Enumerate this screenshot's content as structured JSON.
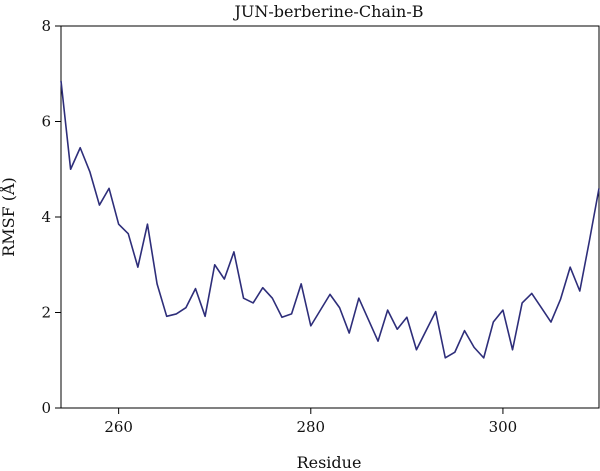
{
  "chart_data": {
    "type": "line",
    "title": "JUN-berberine-Chain-B",
    "xlabel": "Residue",
    "ylabel": "RMSF (Å)",
    "xlim": [
      254,
      310
    ],
    "ylim": [
      0,
      8
    ],
    "xticks": [
      260,
      280,
      300
    ],
    "yticks": [
      0,
      2,
      4,
      6,
      8
    ],
    "grid": false,
    "line_color": "#2e2e7a",
    "series": [
      {
        "x": [
          254,
          255,
          256,
          257,
          258,
          259,
          260,
          261,
          262,
          263,
          264,
          265,
          266,
          267,
          268,
          269,
          270,
          271,
          272,
          273,
          274,
          275,
          276,
          277,
          278,
          279,
          280,
          281,
          282,
          283,
          284,
          285,
          286,
          287,
          288,
          289,
          290,
          291,
          292,
          293,
          294,
          295,
          296,
          297,
          298,
          299,
          300,
          301,
          302,
          303,
          304,
          305,
          306,
          307,
          308,
          309,
          310
        ],
        "y": [
          6.85,
          5.0,
          5.45,
          4.95,
          4.25,
          4.6,
          3.85,
          3.65,
          2.95,
          3.85,
          2.6,
          1.92,
          1.97,
          2.1,
          2.5,
          1.92,
          3.0,
          2.7,
          3.27,
          2.3,
          2.2,
          2.52,
          2.3,
          1.9,
          1.97,
          2.6,
          1.72,
          2.05,
          2.38,
          2.1,
          1.57,
          2.3,
          1.85,
          1.4,
          2.05,
          1.65,
          1.9,
          1.22,
          1.62,
          2.02,
          1.05,
          1.17,
          1.62,
          1.27,
          1.05,
          1.8,
          2.05,
          1.22,
          2.2,
          2.4,
          2.1,
          1.8,
          2.28,
          2.95,
          2.45,
          3.5,
          4.6
        ]
      }
    ]
  }
}
